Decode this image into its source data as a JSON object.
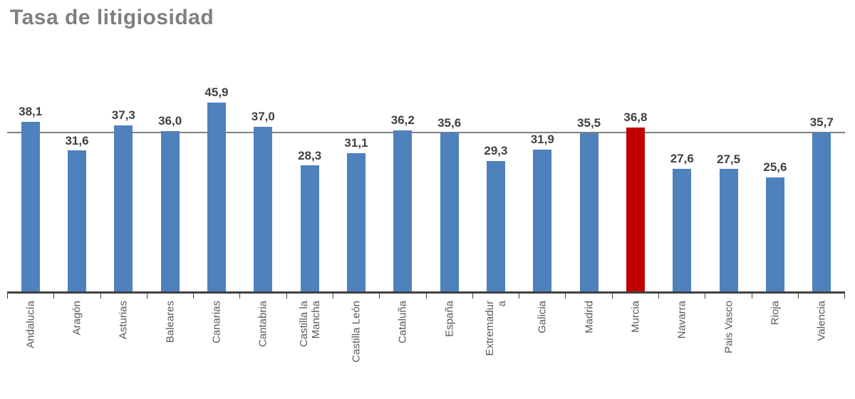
{
  "chart_data": {
    "type": "bar",
    "title": "Tasa de litigiosidad",
    "categories": [
      "Andalucía",
      "Aragón",
      "Asturias",
      "Baleares",
      "Canarias",
      "Cantabria",
      "Castilla la\nMancha",
      "Castilla León",
      "Cataluña",
      "España",
      "Extremadur\na",
      "Galicia",
      "Madrid",
      "Murcia",
      "Navarra",
      "Pais Vasco",
      "Rioja",
      "Valencia"
    ],
    "values": [
      38.1,
      31.6,
      37.3,
      36.0,
      45.9,
      37.0,
      28.3,
      31.1,
      36.2,
      35.6,
      29.3,
      31.9,
      35.5,
      36.8,
      27.6,
      27.5,
      25.6,
      35.7
    ],
    "value_labels": [
      "38,1",
      "31,6",
      "37,3",
      "36,0",
      "45,9",
      "37,0",
      "28,3",
      "31,1",
      "36,2",
      "35,6",
      "29,3",
      "31,9",
      "35,5",
      "36,8",
      "27,6",
      "27,5",
      "25,6",
      "35,7"
    ],
    "highlight_index": 13,
    "highlight_category": "Murcia",
    "bar_color": "#4f81bd",
    "highlight_color": "#c00000",
    "reference_line": 35.6,
    "reference_line_color": "#808080",
    "ylim": [
      0,
      46
    ],
    "grid": false,
    "legend_position": "none",
    "axis_color": "#404040",
    "value_label_color": "#404040",
    "category_label_color": "#595959",
    "title_color": "#7f7f7f",
    "xlabel": "",
    "ylabel": ""
  }
}
